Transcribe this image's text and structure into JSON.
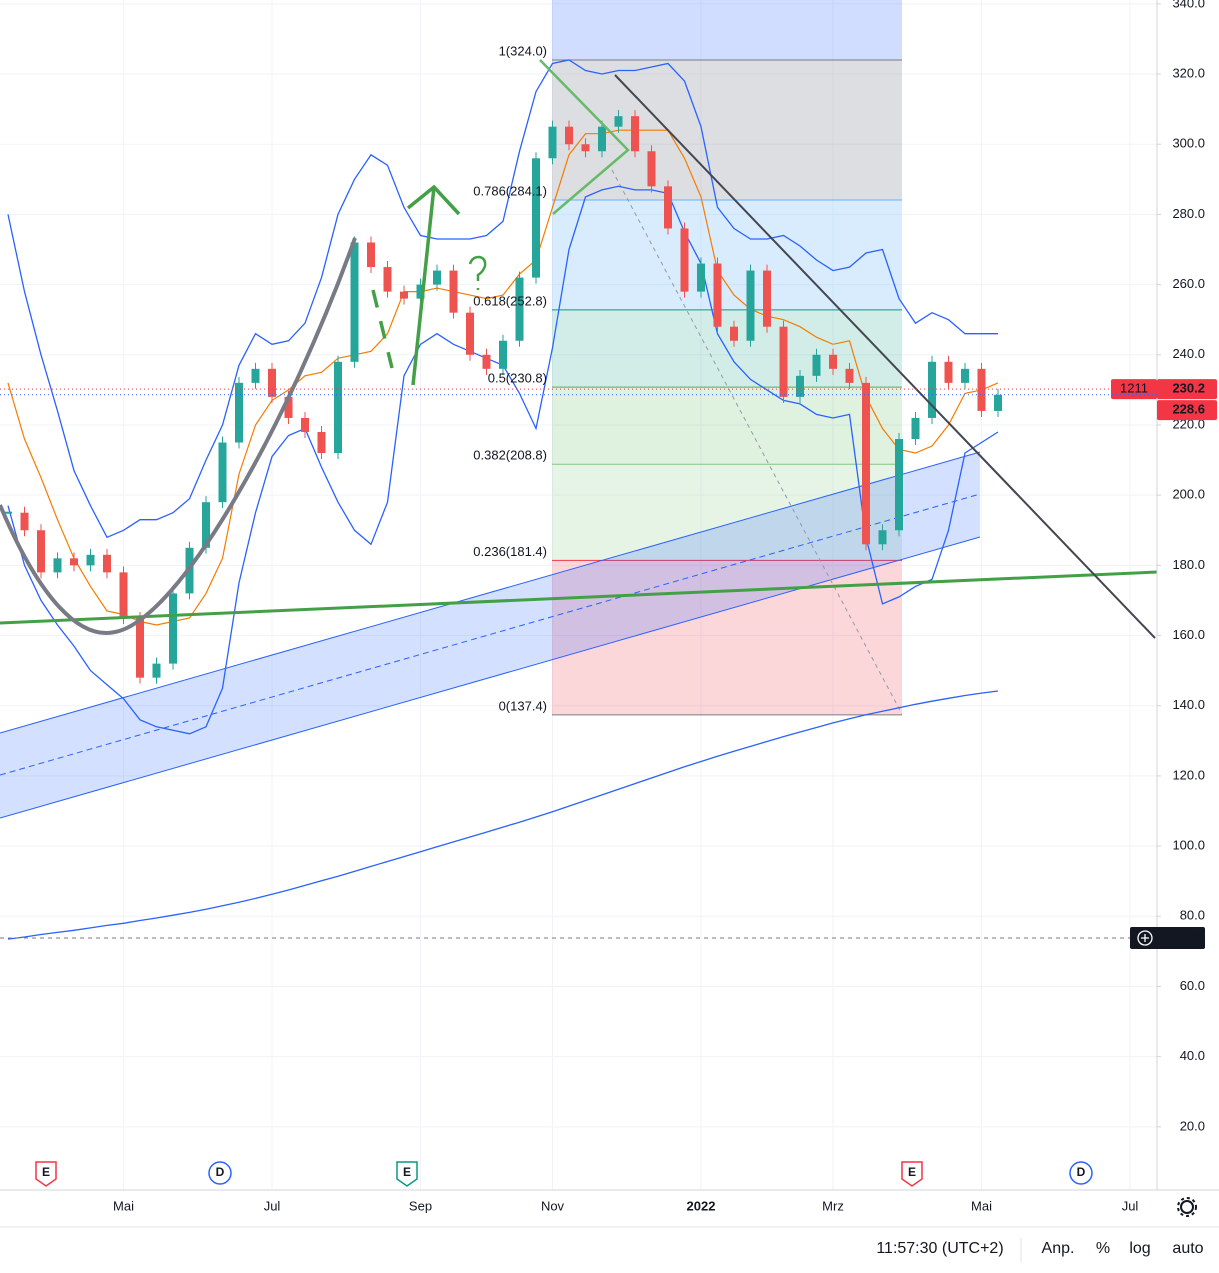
{
  "chart_data": {
    "type": "candlestick",
    "categories": [
      null,
      null,
      null,
      null,
      null,
      null,
      null,
      "Mai",
      null,
      null,
      null,
      null,
      null,
      null,
      null,
      null,
      "Jul",
      null,
      null,
      null,
      null,
      null,
      null,
      null,
      null,
      "Sep",
      null,
      null,
      null,
      null,
      null,
      null,
      null,
      "Nov",
      null,
      null,
      null,
      null,
      null,
      null,
      null,
      null,
      "2022",
      null,
      null,
      null,
      null,
      null,
      null,
      null,
      "Mrz",
      null,
      null,
      null,
      null,
      null,
      null,
      null,
      null,
      "Mai",
      null,
      null,
      null,
      null,
      null,
      null,
      null,
      null,
      "Jul",
      null
    ],
    "values": [
      195,
      190,
      178,
      182,
      180,
      183,
      178,
      165,
      148,
      152,
      172,
      185,
      198,
      215,
      232,
      236,
      228,
      222,
      218,
      212,
      238,
      272,
      265,
      258,
      256,
      260,
      264,
      252,
      240,
      236,
      244,
      262,
      296,
      305,
      300,
      298,
      305,
      308,
      298,
      288,
      276,
      258,
      266,
      248,
      244,
      264,
      248,
      228,
      234,
      240,
      236,
      232,
      186,
      190,
      216,
      222,
      238,
      232,
      236,
      224,
      228.6,
      null,
      null,
      null,
      null,
      null,
      null,
      null,
      null,
      null
    ],
    "up_color": "#26a69a",
    "down_color": "#ef5350",
    "overlays": [
      {
        "color": "#2962ff",
        "width": 1.3,
        "values": [
          280,
          258,
          240,
          224,
          207,
          197,
          188,
          190,
          193,
          193,
          195,
          199,
          210,
          220,
          237,
          246,
          243,
          244,
          249,
          262,
          280,
          290,
          297,
          294,
          282,
          274,
          273,
          273,
          273,
          274,
          278,
          298,
          315,
          323,
          324,
          321,
          320,
          321,
          321,
          322,
          323,
          318,
          305,
          282,
          276,
          273,
          273,
          274,
          271,
          267,
          264,
          265,
          269,
          270,
          256,
          249,
          252,
          250,
          246,
          246,
          246,
          null,
          null,
          null,
          null,
          null,
          null,
          null,
          null,
          null
        ]
      },
      {
        "color": "#2962ff",
        "width": 1.3,
        "values": [
          197,
          180,
          170,
          163,
          157,
          150,
          146,
          142,
          136,
          134,
          133,
          132,
          134,
          145,
          175,
          195,
          211,
          217,
          219,
          208,
          198,
          190,
          186,
          198,
          234,
          243,
          246,
          243,
          241,
          239,
          237,
          229,
          219,
          242,
          270,
          285,
          287,
          288,
          287,
          287,
          286,
          275,
          266,
          246,
          238,
          233,
          230,
          227,
          226,
          223,
          222,
          223,
          188,
          169,
          171,
          174,
          176,
          190,
          212,
          215,
          218,
          null,
          null,
          null,
          null,
          null,
          null,
          null,
          null,
          null
        ]
      },
      {
        "color": "#f57c00",
        "width": 1.2,
        "values": [
          232,
          216,
          205,
          193,
          182,
          174,
          167,
          166,
          164,
          163,
          164,
          165,
          172,
          182,
          206,
          220,
          227,
          230,
          234,
          235,
          239,
          240,
          241,
          246,
          258,
          258,
          259,
          258,
          257,
          256,
          257,
          263,
          267,
          282,
          297,
          303,
          303,
          304,
          304,
          304,
          304,
          296,
          285,
          264,
          257,
          253,
          251,
          250,
          248,
          245,
          243,
          244,
          228,
          219,
          213,
          212,
          214,
          220,
          229,
          230,
          232,
          null,
          null,
          null,
          null,
          null,
          null,
          null,
          null,
          null
        ]
      },
      {
        "color": "#2962ff",
        "width": 1.3,
        "values": [
          73.5,
          74.1,
          74.8,
          75.4,
          76.0,
          76.7,
          77.4,
          78.0,
          78.8,
          79.5,
          80.3,
          81.1,
          82.0,
          83.0,
          84.0,
          85.1,
          86.3,
          87.5,
          88.8,
          90.1,
          91.4,
          92.8,
          94.2,
          95.6,
          97.0,
          98.4,
          99.8,
          101.2,
          102.6,
          104.0,
          105.4,
          106.8,
          108.3,
          109.8,
          111.4,
          113.0,
          114.6,
          116.2,
          117.8,
          119.4,
          121.0,
          122.6,
          124.1,
          125.6,
          127.0,
          128.4,
          129.8,
          131.2,
          132.5,
          133.8,
          135.1,
          136.3,
          137.4,
          138.4,
          139.4,
          140.4,
          141.3,
          142.1,
          142.9,
          143.6,
          144.2,
          null,
          null,
          null,
          null,
          null,
          null,
          null,
          null,
          null
        ]
      }
    ],
    "ylim": [
      2.0,
      341.1
    ],
    "yticks": [
      {
        "value": 20,
        "label": "20.0"
      },
      {
        "value": 40,
        "label": "40.0"
      },
      {
        "value": 60,
        "label": "60.0"
      },
      {
        "value": 80,
        "label": "80.0"
      },
      {
        "value": 100,
        "label": "100.0"
      },
      {
        "value": 120,
        "label": "120.0"
      },
      {
        "value": 140,
        "label": "140.0"
      },
      {
        "value": 160,
        "label": "160.0"
      },
      {
        "value": 180,
        "label": "180.0"
      },
      {
        "value": 200,
        "label": "200.0"
      },
      {
        "value": 220,
        "label": "220.0"
      },
      {
        "value": 240,
        "label": "240.0"
      },
      {
        "value": 260,
        "label": "260.0"
      },
      {
        "value": 280,
        "label": "280.0"
      },
      {
        "value": 300,
        "label": "300.0"
      },
      {
        "value": 320,
        "label": "320.0"
      },
      {
        "value": 340,
        "label": "340.0"
      }
    ],
    "grid": true,
    "fib_levels": [
      {
        "label": "1(324.0)",
        "value": 324.0,
        "color": "#787b86",
        "fill": "rgba(120,123,134,0.25)"
      },
      {
        "label": "0.786(284.1)",
        "value": 284.1,
        "color": "#64b5f6",
        "fill": "rgba(100,181,246,0.25)"
      },
      {
        "label": "0.618(252.8)",
        "value": 252.8,
        "color": "#089981",
        "fill": "rgba(8,153,129,0.18)"
      },
      {
        "label": "0.5(230.8)",
        "value": 230.8,
        "color": "#4caf50",
        "fill": "rgba(76,175,80,0.18)"
      },
      {
        "label": "0.382(208.8)",
        "value": 208.8,
        "color": "#81c784",
        "fill": "rgba(129,199,132,0.2)"
      },
      {
        "label": "0.236(181.4)",
        "value": 181.4,
        "color": "#f23645",
        "fill": "rgba(242,54,69,0.2)"
      },
      {
        "label": "0(137.4)",
        "value": 137.4,
        "color": "#787b86"
      }
    ],
    "price_labels": [
      {
        "value": 230.2,
        "tag": "1211",
        "color": "#f23645",
        "line_color": "#f23645"
      },
      {
        "value": 228.6,
        "color": "#f23645",
        "line_color": "#2962ff"
      }
    ],
    "crosshair": {
      "value": 73.8
    },
    "events": [
      {
        "label": "E",
        "color": "#f23645"
      },
      {
        "label": "D",
        "color": "#2962ff"
      },
      {
        "label": "E",
        "color": "#089981"
      },
      {
        "label": "E",
        "color": "#f23645"
      },
      {
        "label": "D",
        "color": "#2962ff"
      }
    ],
    "bottom_bar": {
      "time": "11:57:30 (UTC+2)",
      "buttons": [
        "Anp.",
        "%",
        "log",
        "auto"
      ]
    }
  }
}
